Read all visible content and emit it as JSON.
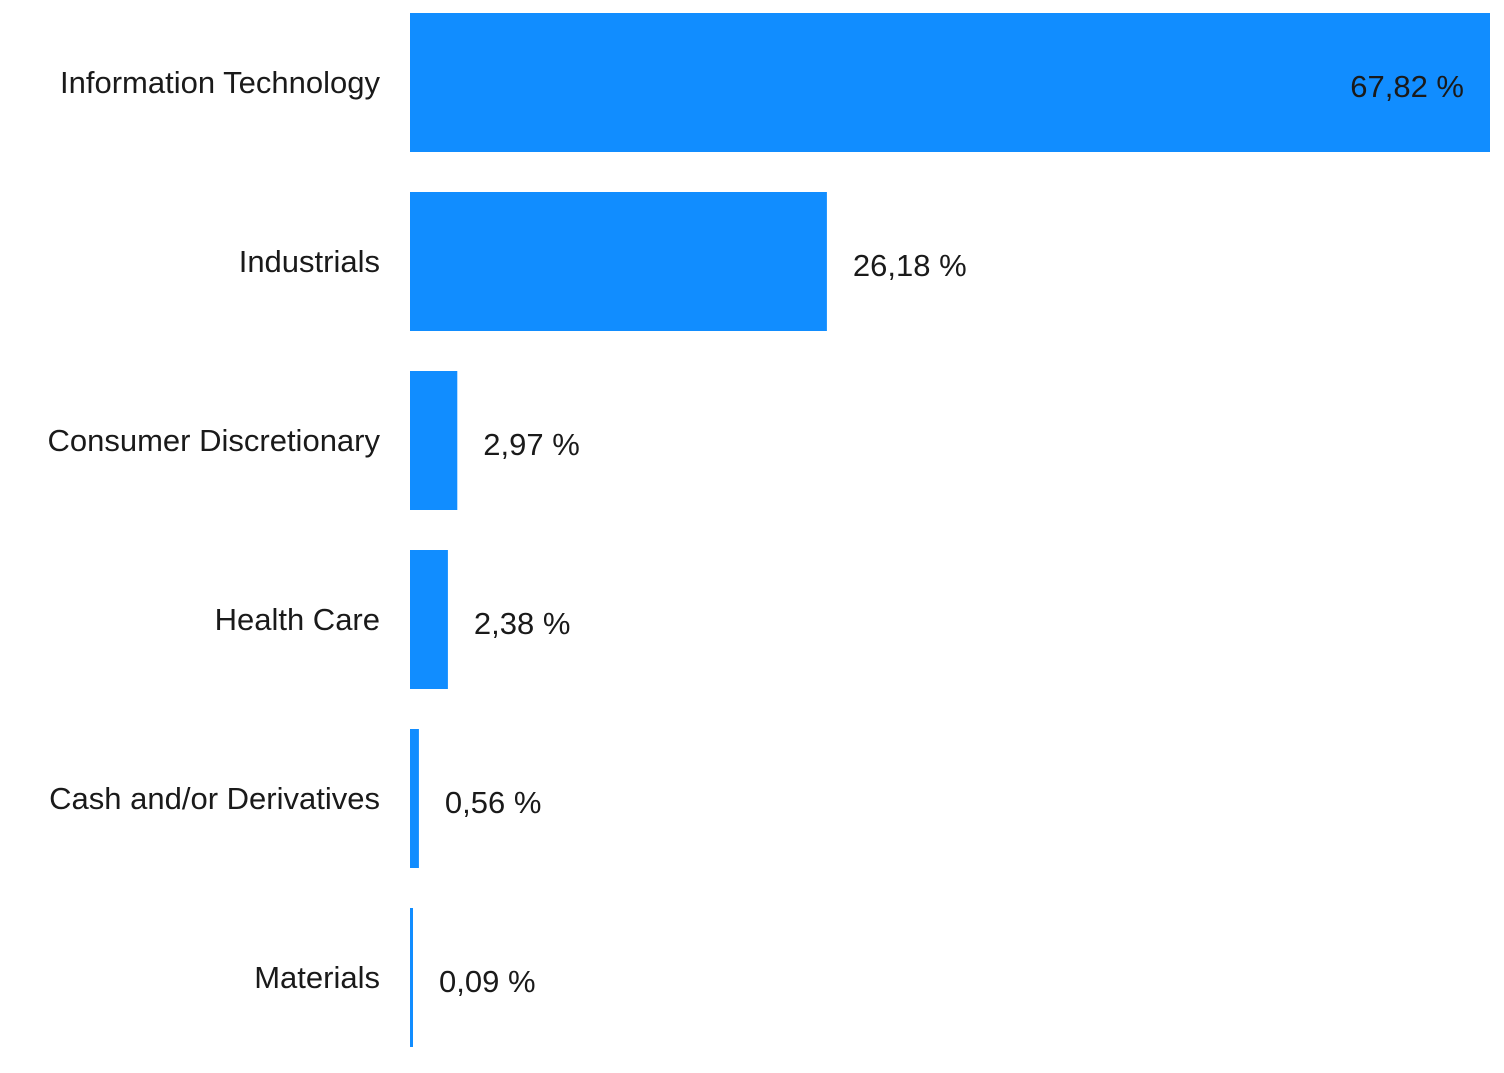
{
  "chart_data": {
    "type": "bar",
    "orientation": "horizontal",
    "categories": [
      "Information Technology",
      "Industrials",
      "Consumer Discretionary",
      "Health Care",
      "Cash and/or Derivatives",
      "Materials"
    ],
    "values": [
      67.82,
      26.18,
      2.97,
      2.38,
      0.56,
      0.09
    ],
    "value_labels": [
      "67,82 %",
      "26,18 %",
      "2,97 %",
      "2,38 %",
      "0,56 %",
      "0,09 %"
    ],
    "unit": "%",
    "title": "",
    "xlabel": "",
    "ylabel": "",
    "xlim": [
      0,
      67.82
    ],
    "grid": false,
    "legend": "none",
    "bar_color": "#118DFF",
    "text_color": "#1a1a1a"
  }
}
